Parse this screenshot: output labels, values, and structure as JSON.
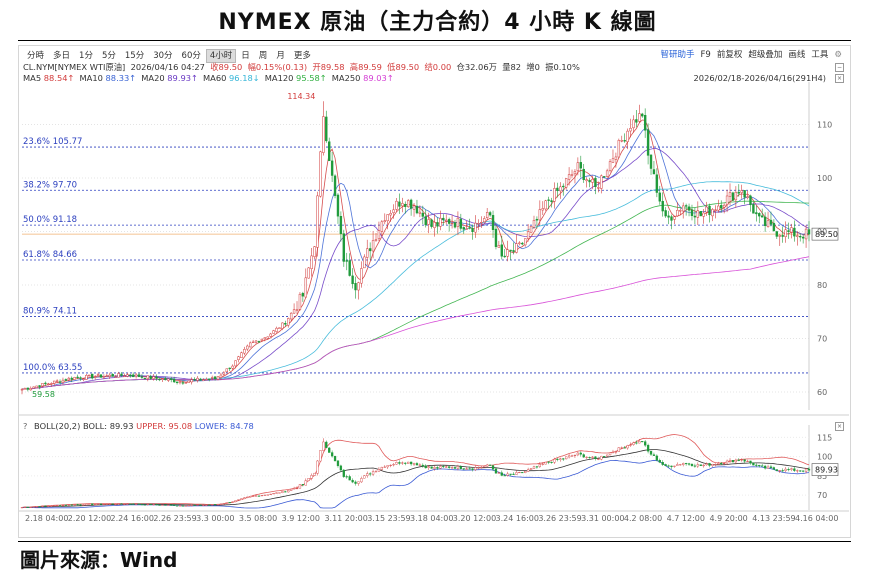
{
  "title": "NYMEX 原油（主力合約）4 小時 K 線圖",
  "source": "圖片來源：Wind",
  "toolbar": {
    "periods": [
      "分時",
      "多日",
      "1分",
      "5分",
      "15分",
      "30分",
      "60分",
      "4小时",
      "日",
      "周",
      "月",
      "更多"
    ],
    "active": "4小时",
    "right": [
      "智研助手",
      "F9",
      "前复权",
      "超级叠加",
      "画线",
      "工具",
      "⚙"
    ]
  },
  "info": {
    "symbol": "CL.NYM[NYMEX WTI原油]",
    "datetime": "2026/04/16 04:27",
    "close": "收89.50",
    "change": "幅0.15%(0.13)",
    "open": "开89.58",
    "high": "高89.59",
    "low": "低89.50",
    "vol": "结0.00",
    "oi": "仓32.06万",
    "qty": "量82",
    "add": "增0",
    "amp": "振0.10%",
    "daterange": "2026/02/18-2026/04/16(291H4)"
  },
  "ma_legend": [
    {
      "label": "MA5",
      "value": "88.54↑",
      "color": "#d23b3b"
    },
    {
      "label": "MA10",
      "value": "88.33↑",
      "color": "#3a64d4"
    },
    {
      "label": "MA20",
      "value": "89.93↑",
      "color": "#6a3ac4"
    },
    {
      "label": "MA60",
      "value": "96.18↓",
      "color": "#36b6d8"
    },
    {
      "label": "MA120",
      "value": "95.58↑",
      "color": "#2fae3f"
    },
    {
      "label": "MA250",
      "value": "89.03↑",
      "color": "#d43fd4"
    }
  ],
  "boll_legend": {
    "q": "?",
    "name": "BOLL(20,2)",
    "boll": "BOLL: 89.93",
    "upper": "UPPER: 95.08",
    "lower": "LOWER: 84.78"
  },
  "fib_levels": [
    {
      "label": "23.6%  105.77",
      "value": 105.77
    },
    {
      "label": "38.2%  97.70",
      "value": 97.7
    },
    {
      "label": "50.0%  91.18",
      "value": 91.18
    },
    {
      "label": "61.8%  84.66",
      "value": 84.66
    },
    {
      "label": "80.9%  74.11",
      "value": 74.11
    },
    {
      "label": "100.0%  63.55",
      "value": 63.55
    }
  ],
  "colors": {
    "up": "#d23b3b",
    "down": "#1f9a3a",
    "fib": "#2b3fbf"
  },
  "chart_data": {
    "type": "line",
    "description_free": true,
    "x_ticks": [
      "2.18 04:00",
      "2.20 12:00",
      "2.24 16:00",
      "2.26 23:59",
      "3.3 00:00",
      "3.5 08:00",
      "3.9 12:00",
      "3.11 20:00",
      "3.15 23:59",
      "3.18 04:00",
      "3.20 12:00",
      "3.24 16:00",
      "3.26 23:59",
      "3.31 00:00",
      "4.2 08:00",
      "4.7 12:00",
      "4.9 20:00",
      "4.13 23:59",
      "4.16 04:00"
    ],
    "y_ticks": [
      60,
      70,
      80,
      90,
      100,
      110
    ],
    "ylim": [
      57,
      117
    ],
    "annotations": {
      "high": "114.34",
      "low": "59.58",
      "last": "89.50"
    },
    "close_anchors": [
      [
        0,
        60.5
      ],
      [
        18,
        62.7
      ],
      [
        36,
        63.2
      ],
      [
        54,
        62.0
      ],
      [
        66,
        62.5
      ],
      [
        72,
        65
      ],
      [
        78,
        69
      ],
      [
        84,
        70.5
      ],
      [
        90,
        73
      ],
      [
        96,
        78
      ],
      [
        100,
        88
      ],
      [
        103,
        112
      ],
      [
        106,
        100
      ],
      [
        110,
        85
      ],
      [
        114,
        80
      ],
      [
        118,
        86
      ],
      [
        124,
        93
      ],
      [
        130,
        96
      ],
      [
        134,
        95
      ],
      [
        140,
        91
      ],
      [
        146,
        92
      ],
      [
        154,
        91
      ],
      [
        160,
        93
      ],
      [
        162,
        88
      ],
      [
        164,
        85
      ],
      [
        170,
        87
      ],
      [
        176,
        92
      ],
      [
        180,
        96
      ],
      [
        184,
        98
      ],
      [
        190,
        102
      ],
      [
        196,
        98
      ],
      [
        202,
        104
      ],
      [
        208,
        110
      ],
      [
        212,
        112
      ],
      [
        214,
        104
      ],
      [
        220,
        92
      ],
      [
        226,
        95
      ],
      [
        232,
        93
      ],
      [
        238,
        95
      ],
      [
        246,
        98
      ],
      [
        252,
        92
      ],
      [
        258,
        90
      ],
      [
        266,
        89.5
      ],
      [
        269,
        89.5
      ]
    ],
    "series": [
      {
        "name": "MA5",
        "color": "#d23b3b",
        "span": 5
      },
      {
        "name": "MA10",
        "color": "#3a64d4",
        "span": 10
      },
      {
        "name": "MA20",
        "color": "#6a3ac4",
        "span": 20
      },
      {
        "name": "MA60",
        "color": "#36b6d8",
        "span": 60
      },
      {
        "name": "MA120",
        "color": "#2fae3f",
        "span": 120
      },
      {
        "name": "MA250",
        "color": "#d43fd4",
        "span": 250
      }
    ],
    "boll": {
      "period": 20,
      "k": 2,
      "upper_color": "#e05a5a",
      "mid_color": "#333333",
      "lower_color": "#3a5ad4"
    },
    "indicator_y_ticks": [
      70,
      85,
      100,
      115
    ],
    "indicator_ylim": [
      60,
      120
    ],
    "indicator_last": "89.93"
  }
}
